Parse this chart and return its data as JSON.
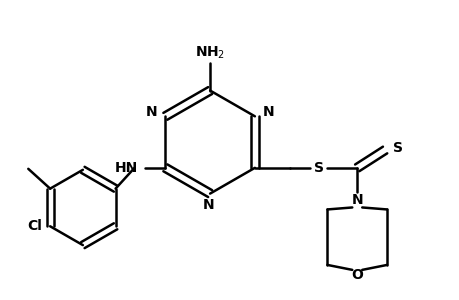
{
  "background_color": "#ffffff",
  "line_color": "#000000",
  "line_width": 1.8,
  "font_size": 10,
  "figsize": [
    4.6,
    3.0
  ],
  "dpi": 100,
  "xlim": [
    0,
    460
  ],
  "ylim": [
    0,
    300
  ]
}
